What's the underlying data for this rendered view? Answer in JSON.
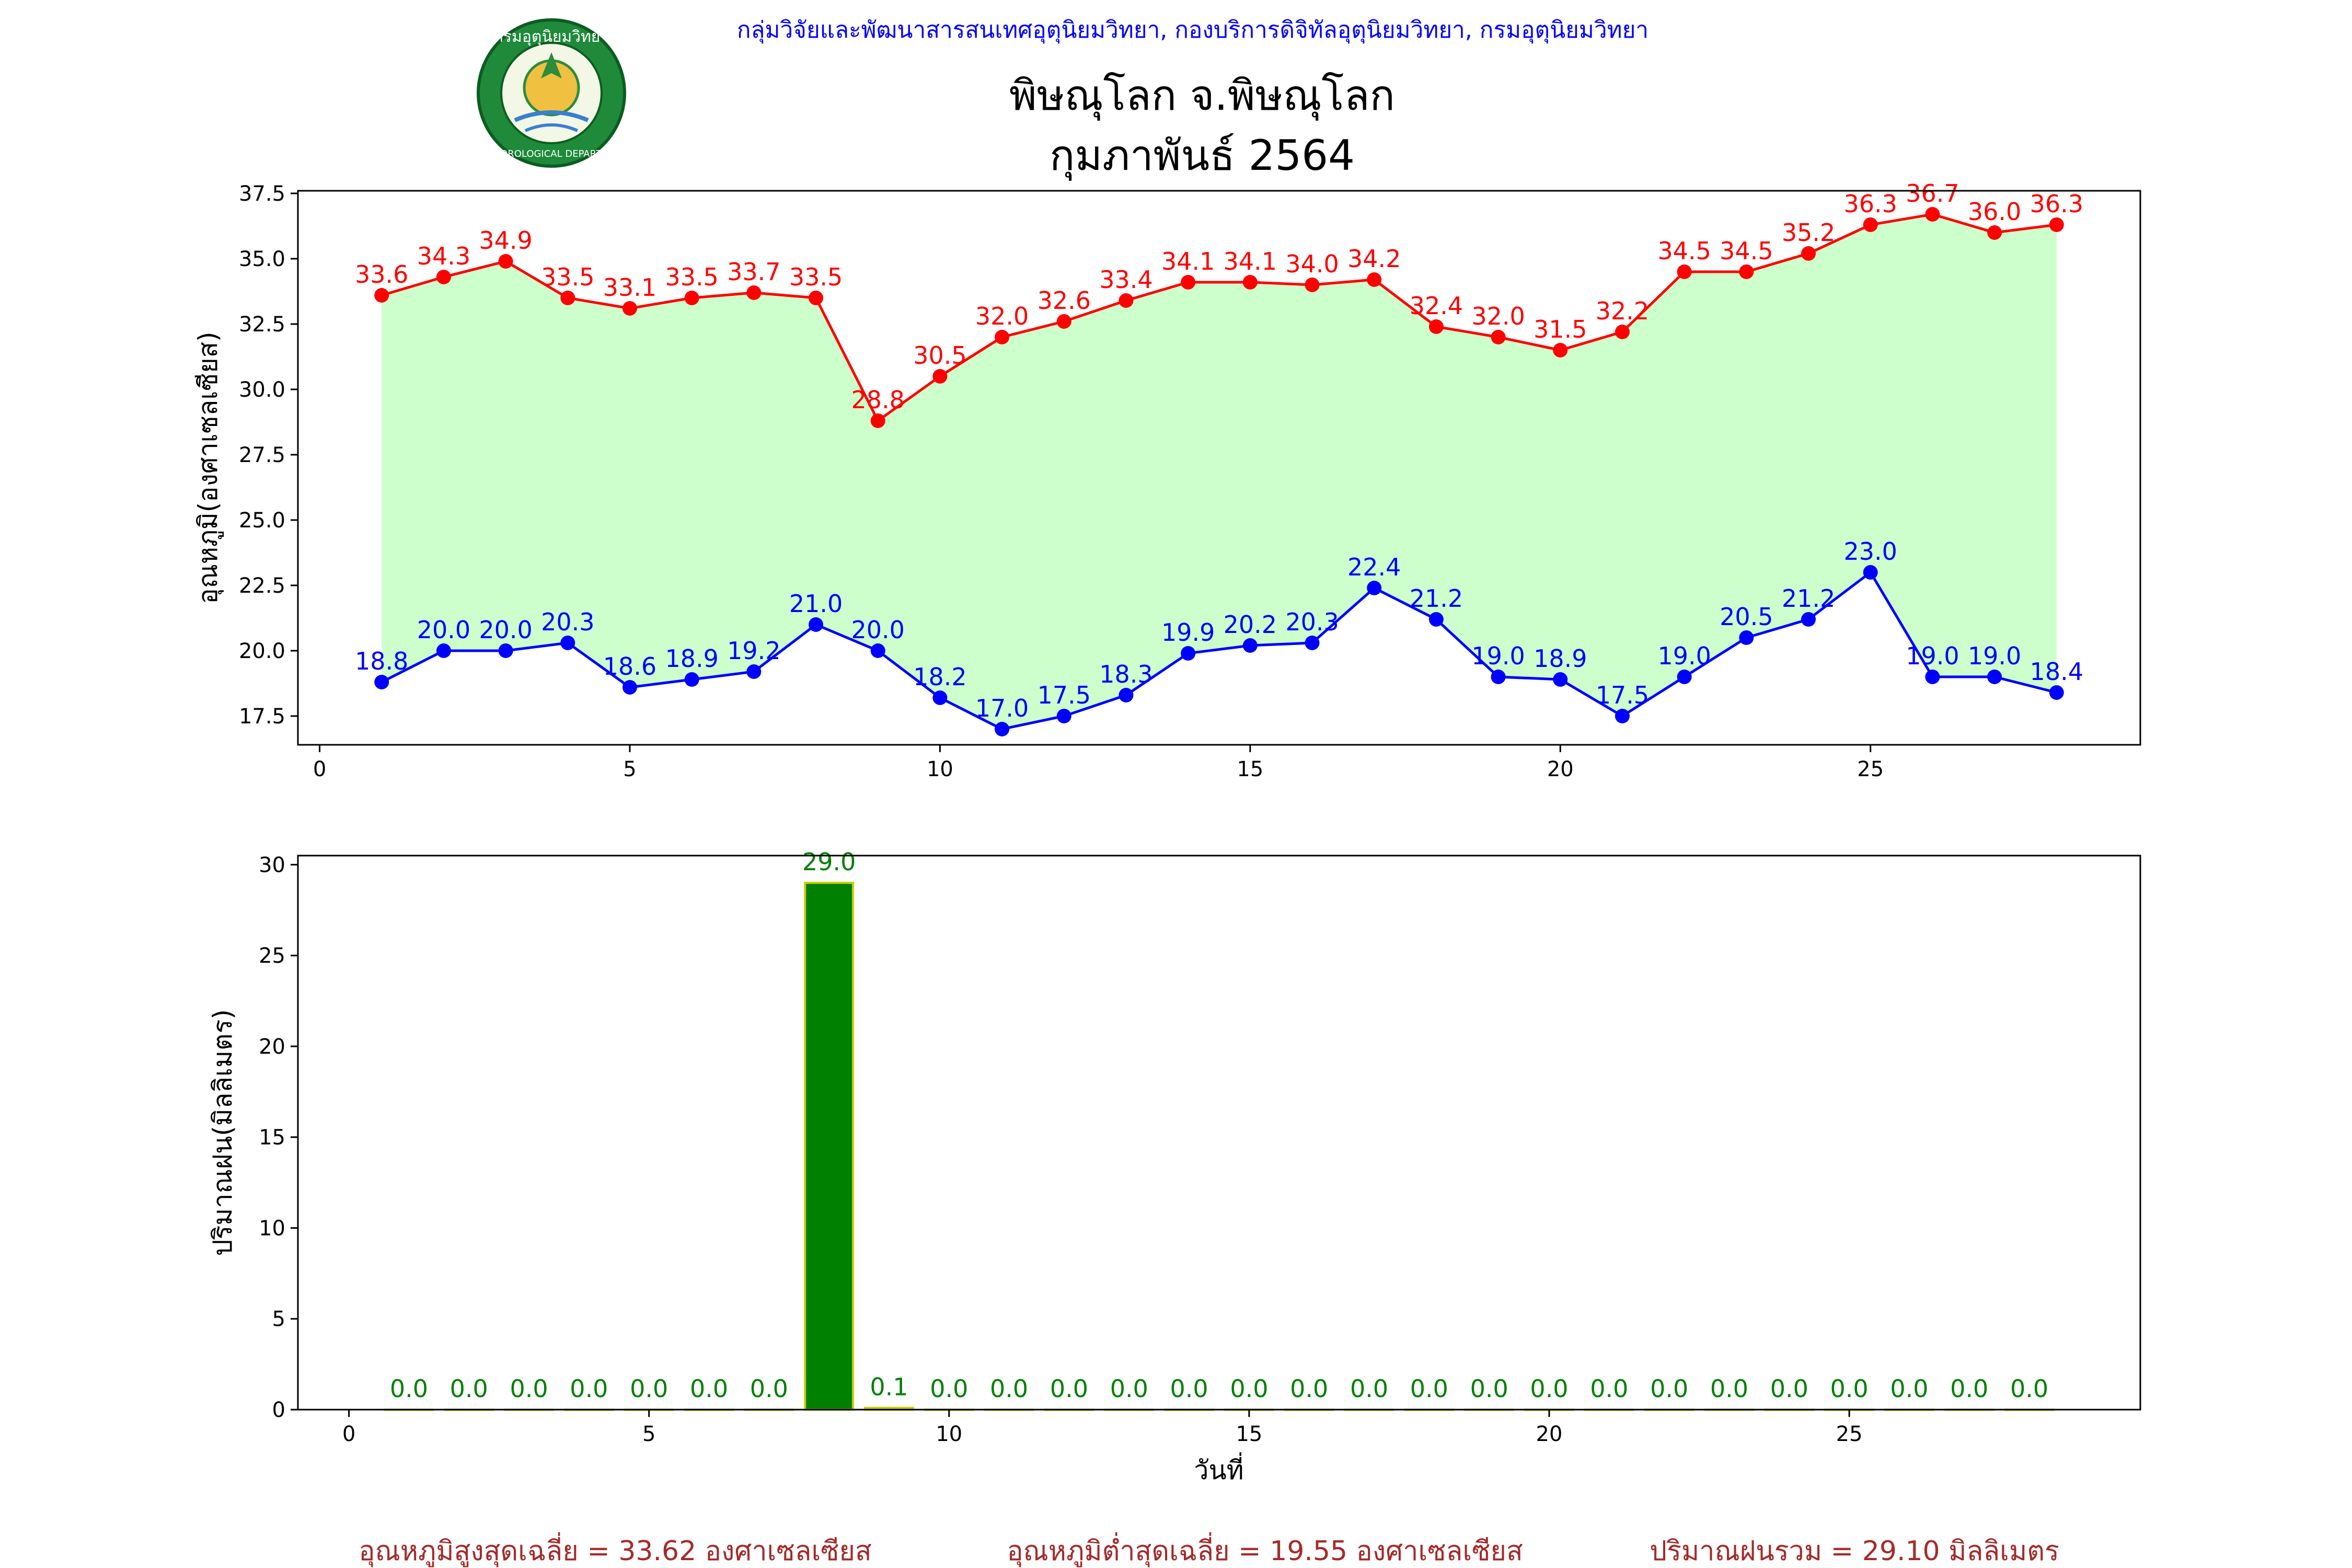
{
  "header": {
    "org": "กลุ่มวิจัยและพัฒนาสารสนเทศอุตุนิยมวิทยา, กองบริการดิจิทัลอุตุนิยมวิทยา, กรมอุตุนิยมวิทยา",
    "station": "พิษณุโลก จ.พิษณุโลก",
    "period": "กุมภาพันธ์ 2564"
  },
  "logo": {
    "text_top": "กรมอุตุนิยมวิทยา",
    "text_bottom": "METEOROLOGICAL DEPARTMENT"
  },
  "colors": {
    "max": "#ff0000",
    "min": "#0000ff",
    "fill": "#ccffcc",
    "rain": "#008000",
    "rain_edge": "#cccc00",
    "header": "#0000ff",
    "summary": "#a52a2a"
  },
  "chart_data": [
    {
      "type": "line",
      "ylabel": "อุณหภูมิ(องศาเซลเซียส)",
      "xlabel": "",
      "xlim": [
        -0.35,
        29.35
      ],
      "ylim": [
        16.4,
        37.6
      ],
      "xticks": [
        0,
        5,
        10,
        15,
        20,
        25
      ],
      "yticks": [
        17.5,
        20.0,
        22.5,
        25.0,
        27.5,
        30.0,
        32.5,
        35.0,
        37.5
      ],
      "x": [
        1,
        2,
        3,
        4,
        5,
        6,
        7,
        8,
        9,
        10,
        11,
        12,
        13,
        14,
        15,
        16,
        17,
        18,
        19,
        20,
        21,
        22,
        23,
        24,
        25,
        26,
        27,
        28
      ],
      "series": [
        {
          "key": "max",
          "values": [
            33.6,
            34.3,
            34.9,
            33.5,
            33.1,
            33.5,
            33.7,
            33.5,
            28.8,
            30.5,
            32.0,
            32.6,
            33.4,
            34.1,
            34.1,
            34.0,
            34.2,
            32.4,
            32.0,
            31.5,
            32.2,
            34.5,
            34.5,
            35.2,
            36.3,
            36.7,
            36.0,
            36.3
          ]
        },
        {
          "key": "min",
          "values": [
            18.8,
            20.0,
            20.0,
            20.3,
            18.6,
            18.9,
            19.2,
            21.0,
            20.0,
            18.2,
            17.0,
            17.5,
            18.3,
            19.9,
            20.2,
            20.3,
            22.4,
            21.2,
            19.0,
            18.9,
            17.5,
            19.0,
            20.5,
            21.2,
            23.0,
            19.0,
            19.0,
            18.4
          ]
        }
      ]
    },
    {
      "type": "bar",
      "ylabel": "ปริมาณฝน(มิลลิเมตร)",
      "xlabel": "วันที่",
      "xlim": [
        -0.85,
        29.85
      ],
      "ylim": [
        0,
        30.5
      ],
      "xticks": [
        0,
        5,
        10,
        15,
        20,
        25
      ],
      "yticks": [
        0,
        5,
        10,
        15,
        20,
        25,
        30
      ],
      "x": [
        1,
        2,
        3,
        4,
        5,
        6,
        7,
        8,
        9,
        10,
        11,
        12,
        13,
        14,
        15,
        16,
        17,
        18,
        19,
        20,
        21,
        22,
        23,
        24,
        25,
        26,
        27,
        28
      ],
      "values": [
        0.0,
        0.0,
        0.0,
        0.0,
        0.0,
        0.0,
        0.0,
        29.0,
        0.1,
        0.0,
        0.0,
        0.0,
        0.0,
        0.0,
        0.0,
        0.0,
        0.0,
        0.0,
        0.0,
        0.0,
        0.0,
        0.0,
        0.0,
        0.0,
        0.0,
        0.0,
        0.0,
        0.0
      ]
    }
  ],
  "summary": {
    "avg_max": "อุณหภูมิสูงสุดเฉลี่ย = 33.62 องศาเซลเซียส",
    "avg_min": "อุณหภูมิต่ำสุดเฉลี่ย = 19.55 องศาเซลเซียส",
    "total_rain": "ปริมาณฝนรวม = 29.10 มิลลิเมตร"
  }
}
